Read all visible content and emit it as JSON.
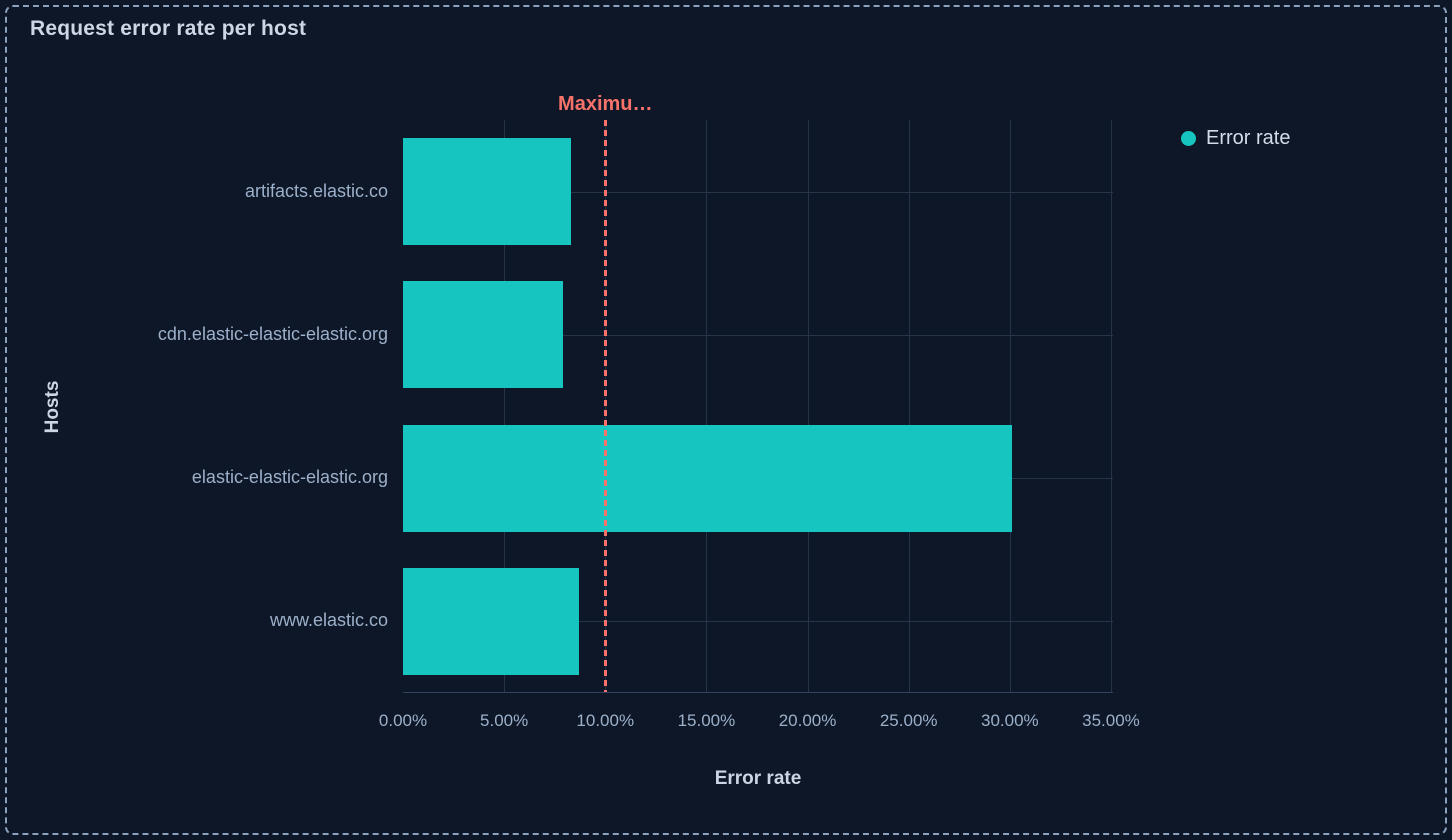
{
  "panel": {
    "title": "Request error rate per host"
  },
  "legend": {
    "position": "right",
    "items": [
      {
        "label": "Error rate",
        "color": "#16c5c0"
      }
    ]
  },
  "chart_data": {
    "type": "bar",
    "orientation": "horizontal",
    "title": "Request error rate per host",
    "xlabel": "Error rate",
    "ylabel": "Hosts",
    "categories": [
      "artifacts.elastic.co",
      "cdn.elastic-elastic-elastic.org",
      "elastic-elastic-elastic.org",
      "www.elastic.co"
    ],
    "series": [
      {
        "name": "Error rate",
        "values": [
          8.3,
          7.9,
          30.1,
          8.7
        ]
      }
    ],
    "unit": "%",
    "xlim": [
      0,
      35.1
    ],
    "x_tick_values": [
      0,
      5,
      10,
      15,
      20,
      25,
      30,
      35
    ],
    "x_ticks": [
      "0.00%",
      "5.00%",
      "10.00%",
      "15.00%",
      "20.00%",
      "25.00%",
      "30.00%",
      "35.00%"
    ],
    "grid": true,
    "legend_position": "right",
    "annotation": {
      "label": "Maximu…",
      "value": 10,
      "style": "dashed",
      "color": "#f6726a"
    }
  },
  "colors": {
    "background": "#0d1727",
    "panel_border": "#8ba1c0",
    "bar": "#16c5c0",
    "annotation": "#f6726a",
    "gridline": "#263449",
    "axis_line": "#32425d",
    "title_text": "#ccd6e4",
    "tick_text": "#9db0ca",
    "axis_title_text": "#cbd5e4",
    "legend_text": "#d3dce9"
  }
}
